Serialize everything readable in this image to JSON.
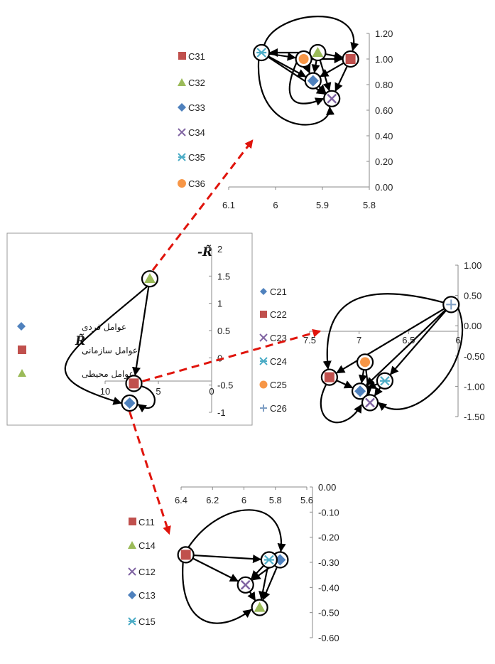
{
  "colors": {
    "red": "#c0504d",
    "green": "#9bbb59",
    "blue": "#4f81bd",
    "purple": "#8064a2",
    "teal": "#4bacc6",
    "orange": "#f79646",
    "gray": "#7f9fc4",
    "zoom_arrow": "#e0140c"
  },
  "chart_data": [
    {
      "id": "main",
      "type": "scatter",
      "xlabel": "R̃",
      "ylabel": "-R̃",
      "xlim": [
        0,
        10
      ],
      "ylim": [
        -1,
        2
      ],
      "x_ticks": [
        "10",
        "5",
        "0"
      ],
      "y_ticks": [
        "2",
        "1.5",
        "1",
        "0.5",
        "0",
        "-0.5",
        "-1"
      ],
      "series": [
        {
          "name": "عوامل فردی",
          "marker": "diamond",
          "color": "blue",
          "x": 7.7,
          "y": -0.83
        },
        {
          "name": "عوامل سازمانی",
          "marker": "square",
          "color": "red",
          "x": 7.3,
          "y": -0.47
        },
        {
          "name": "عوامل محیطی",
          "marker": "triangle",
          "color": "green",
          "x": 5.8,
          "y": 1.45
        }
      ],
      "edges": [
        [
          "عوامل محیطی",
          "عوامل سازمانی"
        ],
        [
          "عوامل محیطی",
          "عوامل فردی"
        ],
        [
          "عوامل سازمانی",
          "عوامل فردی"
        ]
      ]
    },
    {
      "id": "C3",
      "type": "scatter",
      "xlim": [
        5.8,
        6.1
      ],
      "ylim": [
        0,
        1.2
      ],
      "x_ticks": [
        "6.1",
        "6",
        "5.9",
        "5.8"
      ],
      "y_ticks": [
        "1.20",
        "1.00",
        "0.80",
        "0.60",
        "0.40",
        "0.20",
        "0.00"
      ],
      "series": [
        {
          "name": "C31",
          "marker": "square",
          "color": "red",
          "x": 5.84,
          "y": 1.0
        },
        {
          "name": "C32",
          "marker": "triangle",
          "color": "green",
          "x": 5.91,
          "y": 1.05
        },
        {
          "name": "C33",
          "marker": "diamond",
          "color": "blue",
          "x": 5.92,
          "y": 0.83
        },
        {
          "name": "C34",
          "marker": "x",
          "color": "purple",
          "x": 5.88,
          "y": 0.69
        },
        {
          "name": "C35",
          "marker": "asterisk",
          "color": "teal",
          "x": 6.03,
          "y": 1.05
        },
        {
          "name": "C36",
          "marker": "circle",
          "color": "orange",
          "x": 5.94,
          "y": 1.0
        }
      ]
    },
    {
      "id": "C2",
      "type": "scatter",
      "xlim": [
        6,
        7.5
      ],
      "ylim": [
        -1.5,
        1
      ],
      "x_ticks": [
        "7.5",
        "7",
        "6.5",
        "6"
      ],
      "y_ticks": [
        "1.00",
        "0.50",
        "0.00",
        "-0.50",
        "-1.00",
        "-1.50"
      ],
      "series": [
        {
          "name": "C21",
          "marker": "diamond",
          "color": "blue",
          "x": 6.99,
          "y": -1.08
        },
        {
          "name": "C22",
          "marker": "square",
          "color": "red",
          "x": 7.3,
          "y": -0.85
        },
        {
          "name": "C23",
          "marker": "x",
          "color": "purple",
          "x": 6.89,
          "y": -1.27
        },
        {
          "name": "C24",
          "marker": "asterisk",
          "color": "teal",
          "x": 6.74,
          "y": -0.91
        },
        {
          "name": "C25",
          "marker": "circle",
          "color": "orange",
          "x": 6.94,
          "y": -0.6
        },
        {
          "name": "C26",
          "marker": "plus",
          "color": "gray",
          "x": 6.07,
          "y": 0.35
        }
      ]
    },
    {
      "id": "C1",
      "type": "scatter",
      "xlim": [
        5.6,
        6.4
      ],
      "ylim": [
        -0.6,
        0
      ],
      "x_ticks": [
        "6.4",
        "6.2",
        "6",
        "5.8",
        "5.6"
      ],
      "y_ticks": [
        "0.00",
        "-0.10",
        "-0.20",
        "-0.30",
        "-0.40",
        "-0.50",
        "-0.60"
      ],
      "series": [
        {
          "name": "C11",
          "marker": "square",
          "color": "red",
          "x": 6.37,
          "y": -0.27
        },
        {
          "name": "C14",
          "marker": "triangle",
          "color": "green",
          "x": 5.9,
          "y": -0.48
        },
        {
          "name": "C12",
          "marker": "x",
          "color": "purple",
          "x": 5.99,
          "y": -0.39
        },
        {
          "name": "C13",
          "marker": "diamond",
          "color": "blue",
          "x": 5.77,
          "y": -0.29
        },
        {
          "name": "C15",
          "marker": "asterisk",
          "color": "teal",
          "x": 5.84,
          "y": -0.29
        }
      ]
    }
  ],
  "zoom_links": [
    [
      "C3"
    ],
    [
      "C2"
    ],
    [
      "C1"
    ]
  ]
}
